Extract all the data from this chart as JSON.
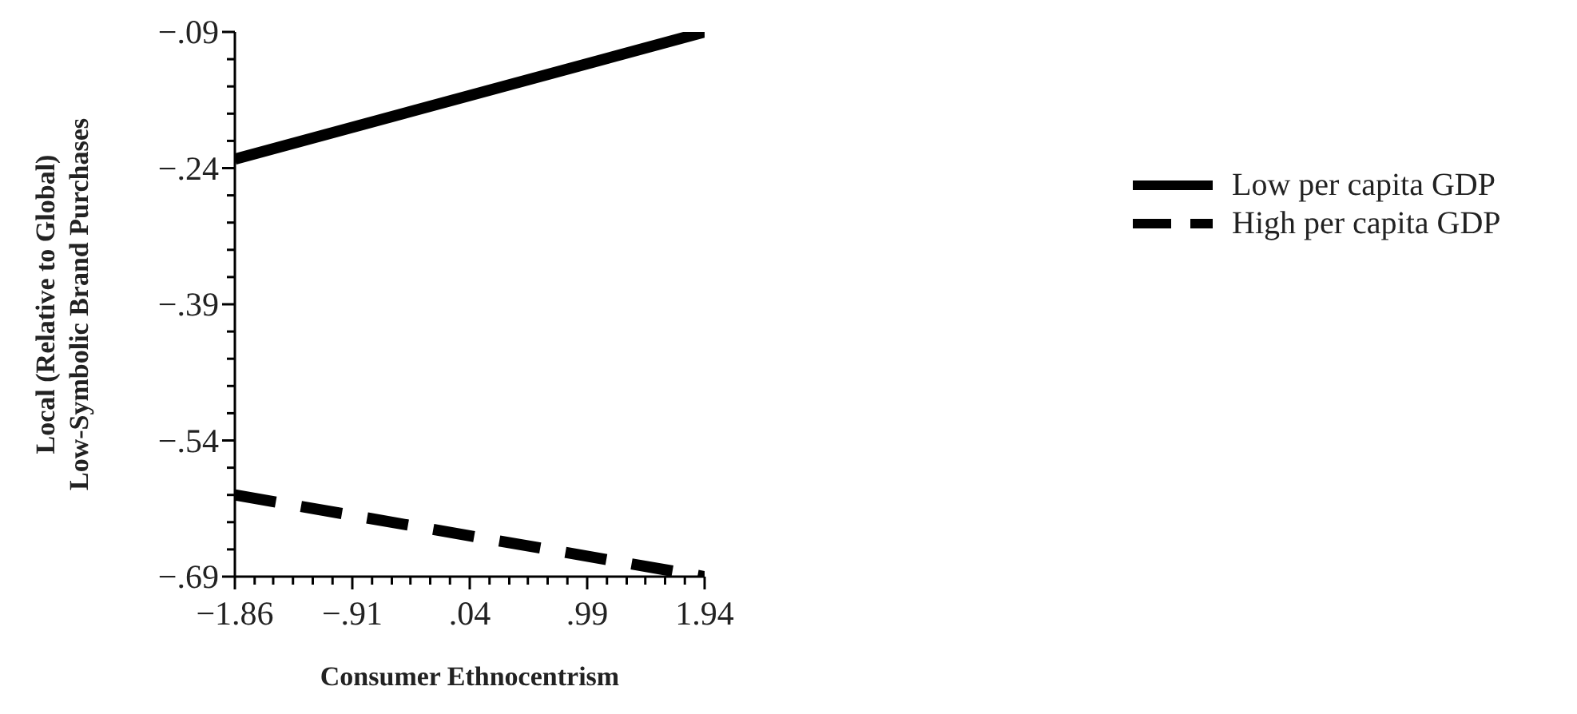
{
  "chart_data": {
    "type": "line",
    "xlabel": "Consumer Ethnocentrism",
    "ylabel": "Local (Relative to Global)\nLow-Symbolic Brand Purchases",
    "x": [
      -1.86,
      1.94
    ],
    "series": [
      {
        "name": "Low per capita GDP",
        "color": "#000000",
        "values": [
          -0.23,
          -0.09
        ],
        "line_style": "solid"
      },
      {
        "name": "High per capita GDP",
        "color": "#000000",
        "values": [
          -0.6,
          -0.69
        ],
        "line_style": "dashed"
      }
    ],
    "xlim": [
      -1.86,
      1.94
    ],
    "xticks": [
      {
        "value": -1.86,
        "label": "−1.86"
      },
      {
        "value": -1.7,
        "label": null
      },
      {
        "value": -1.55,
        "label": null
      },
      {
        "value": -1.39,
        "label": null
      },
      {
        "value": -1.23,
        "label": null
      },
      {
        "value": -1.07,
        "label": null
      },
      {
        "value": -0.91,
        "label": "−.91"
      },
      {
        "value": -0.75,
        "label": null
      },
      {
        "value": -0.59,
        "label": null
      },
      {
        "value": -0.44,
        "label": null
      },
      {
        "value": -0.28,
        "label": null
      },
      {
        "value": -0.12,
        "label": null
      },
      {
        "value": 0.04,
        "label": ".04"
      },
      {
        "value": 0.2,
        "label": null
      },
      {
        "value": 0.36,
        "label": null
      },
      {
        "value": 0.51,
        "label": null
      },
      {
        "value": 0.67,
        "label": null
      },
      {
        "value": 0.83,
        "label": null
      },
      {
        "value": 0.99,
        "label": ".99"
      },
      {
        "value": 1.15,
        "label": null
      },
      {
        "value": 1.31,
        "label": null
      },
      {
        "value": 1.46,
        "label": null
      },
      {
        "value": 1.62,
        "label": null
      },
      {
        "value": 1.78,
        "label": null
      },
      {
        "value": 1.94,
        "label": "1.94"
      }
    ],
    "ylim": [
      -0.69,
      -0.09
    ],
    "yticks": [
      {
        "value": -0.69,
        "label": "−.69"
      },
      {
        "value": -0.66,
        "label": null
      },
      {
        "value": -0.63,
        "label": null
      },
      {
        "value": -0.6,
        "label": null
      },
      {
        "value": -0.57,
        "label": null
      },
      {
        "value": -0.54,
        "label": "−.54"
      },
      {
        "value": -0.51,
        "label": null
      },
      {
        "value": -0.48,
        "label": null
      },
      {
        "value": -0.45,
        "label": null
      },
      {
        "value": -0.42,
        "label": null
      },
      {
        "value": -0.39,
        "label": "−.39"
      },
      {
        "value": -0.36,
        "label": null
      },
      {
        "value": -0.33,
        "label": null
      },
      {
        "value": -0.3,
        "label": null
      },
      {
        "value": -0.27,
        "label": null
      },
      {
        "value": -0.24,
        "label": "−.24"
      },
      {
        "value": -0.21,
        "label": null
      },
      {
        "value": -0.18,
        "label": null
      },
      {
        "value": -0.15,
        "label": null
      },
      {
        "value": -0.12,
        "label": null
      },
      {
        "value": -0.09,
        "label": "−.09"
      }
    ],
    "legend": "right",
    "marker": "none"
  }
}
